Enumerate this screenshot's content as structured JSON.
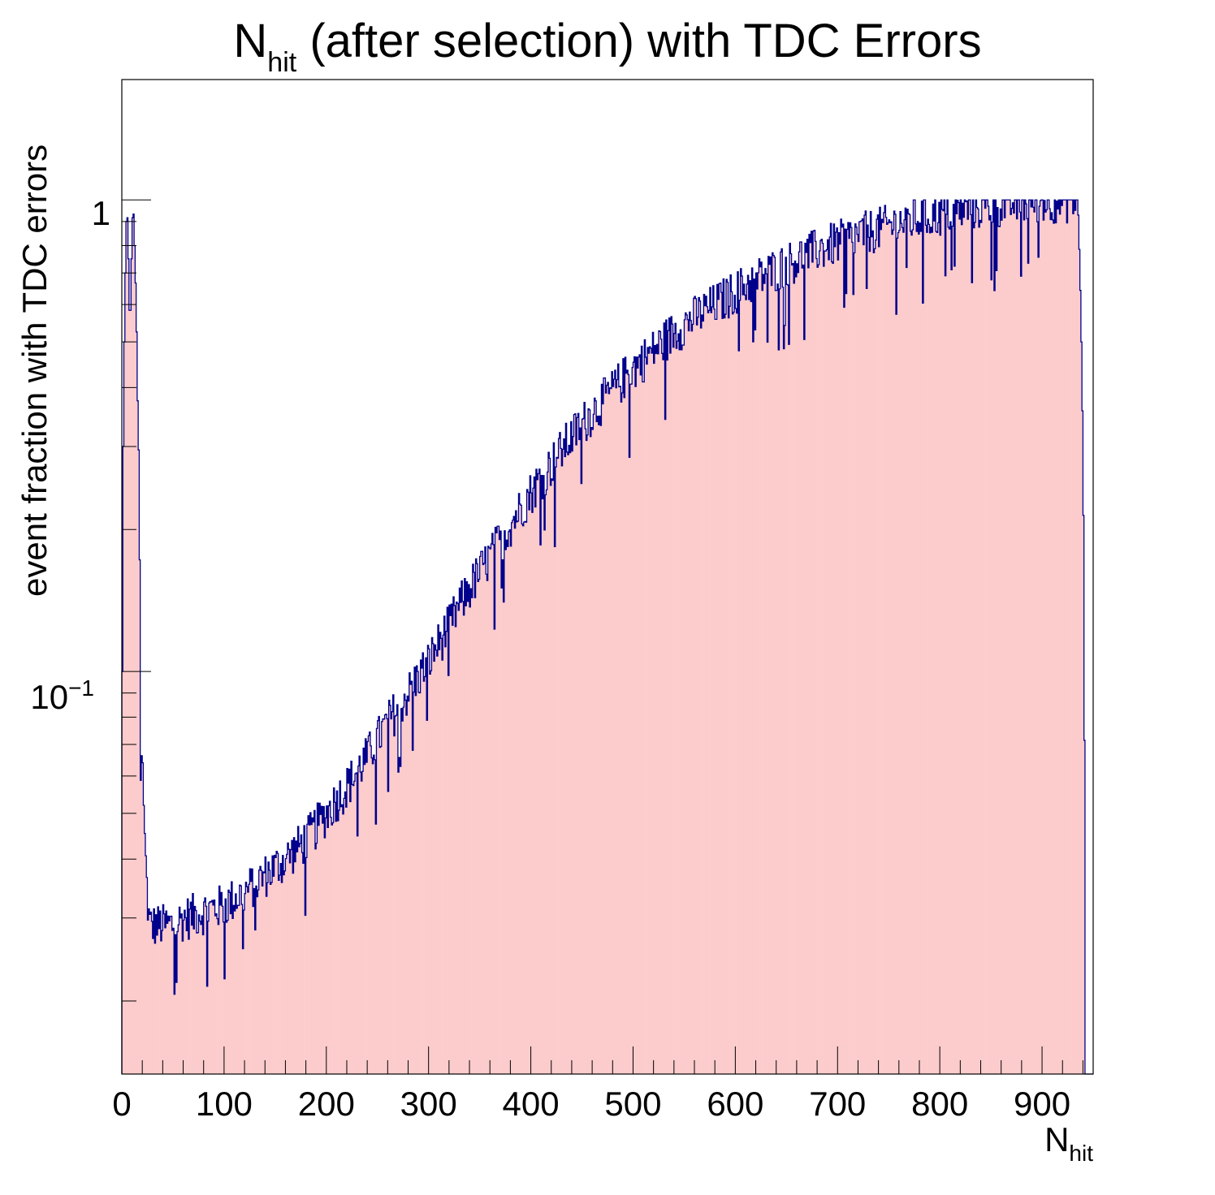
{
  "chart_data": {
    "type": "bar",
    "title": {
      "main": "N",
      "sub": "hit",
      "rest": " (after selection) with TDC Errors"
    },
    "xlabel": {
      "main": "N",
      "sub": "hit"
    },
    "ylabel": "event fraction with TDC errors",
    "xlim": [
      0,
      950
    ],
    "ylim": [
      0.014,
      1.8
    ],
    "yscale": "log",
    "x_ticks": [
      "0",
      "100",
      "200",
      "300",
      "400",
      "500",
      "600",
      "700",
      "800",
      "900"
    ],
    "y_ticks": {
      "one": "1",
      "base": "10",
      "exp": "−1"
    },
    "bin_width": 1,
    "fill_color": "#fccccc",
    "line_color": "#00008c",
    "grid": false,
    "legend": false,
    "series": [
      {
        "x_anchor": [
          0,
          5,
          8,
          11,
          14,
          16,
          17,
          18,
          20,
          22,
          25,
          27,
          30,
          40,
          50,
          60,
          80,
          100,
          120,
          140,
          160,
          180,
          200,
          220,
          240,
          260,
          280,
          300,
          320,
          340,
          360,
          380,
          400,
          420,
          440,
          460,
          480,
          500,
          520,
          540,
          560,
          580,
          600,
          620,
          640,
          660,
          680,
          700,
          720,
          740,
          760,
          780,
          800,
          820,
          840,
          860,
          880,
          900,
          920,
          935,
          942,
          950
        ],
        "y_anchor": [
          0.0,
          1.0,
          0.5,
          1.0,
          0.6,
          0.3,
          0.29,
          0.055,
          0.07,
          0.046,
          0.033,
          0.029,
          0.029,
          0.029,
          0.029,
          0.03,
          0.031,
          0.032,
          0.034,
          0.037,
          0.04,
          0.044,
          0.05,
          0.057,
          0.066,
          0.078,
          0.09,
          0.105,
          0.125,
          0.15,
          0.175,
          0.205,
          0.24,
          0.275,
          0.315,
          0.355,
          0.395,
          0.44,
          0.48,
          0.525,
          0.565,
          0.6,
          0.64,
          0.68,
          0.715,
          0.75,
          0.785,
          0.815,
          0.845,
          0.87,
          0.895,
          0.915,
          0.935,
          0.955,
          0.97,
          0.98,
          0.99,
          1.0,
          1.0,
          1.0,
          0.0,
          0.0
        ]
      }
    ]
  }
}
